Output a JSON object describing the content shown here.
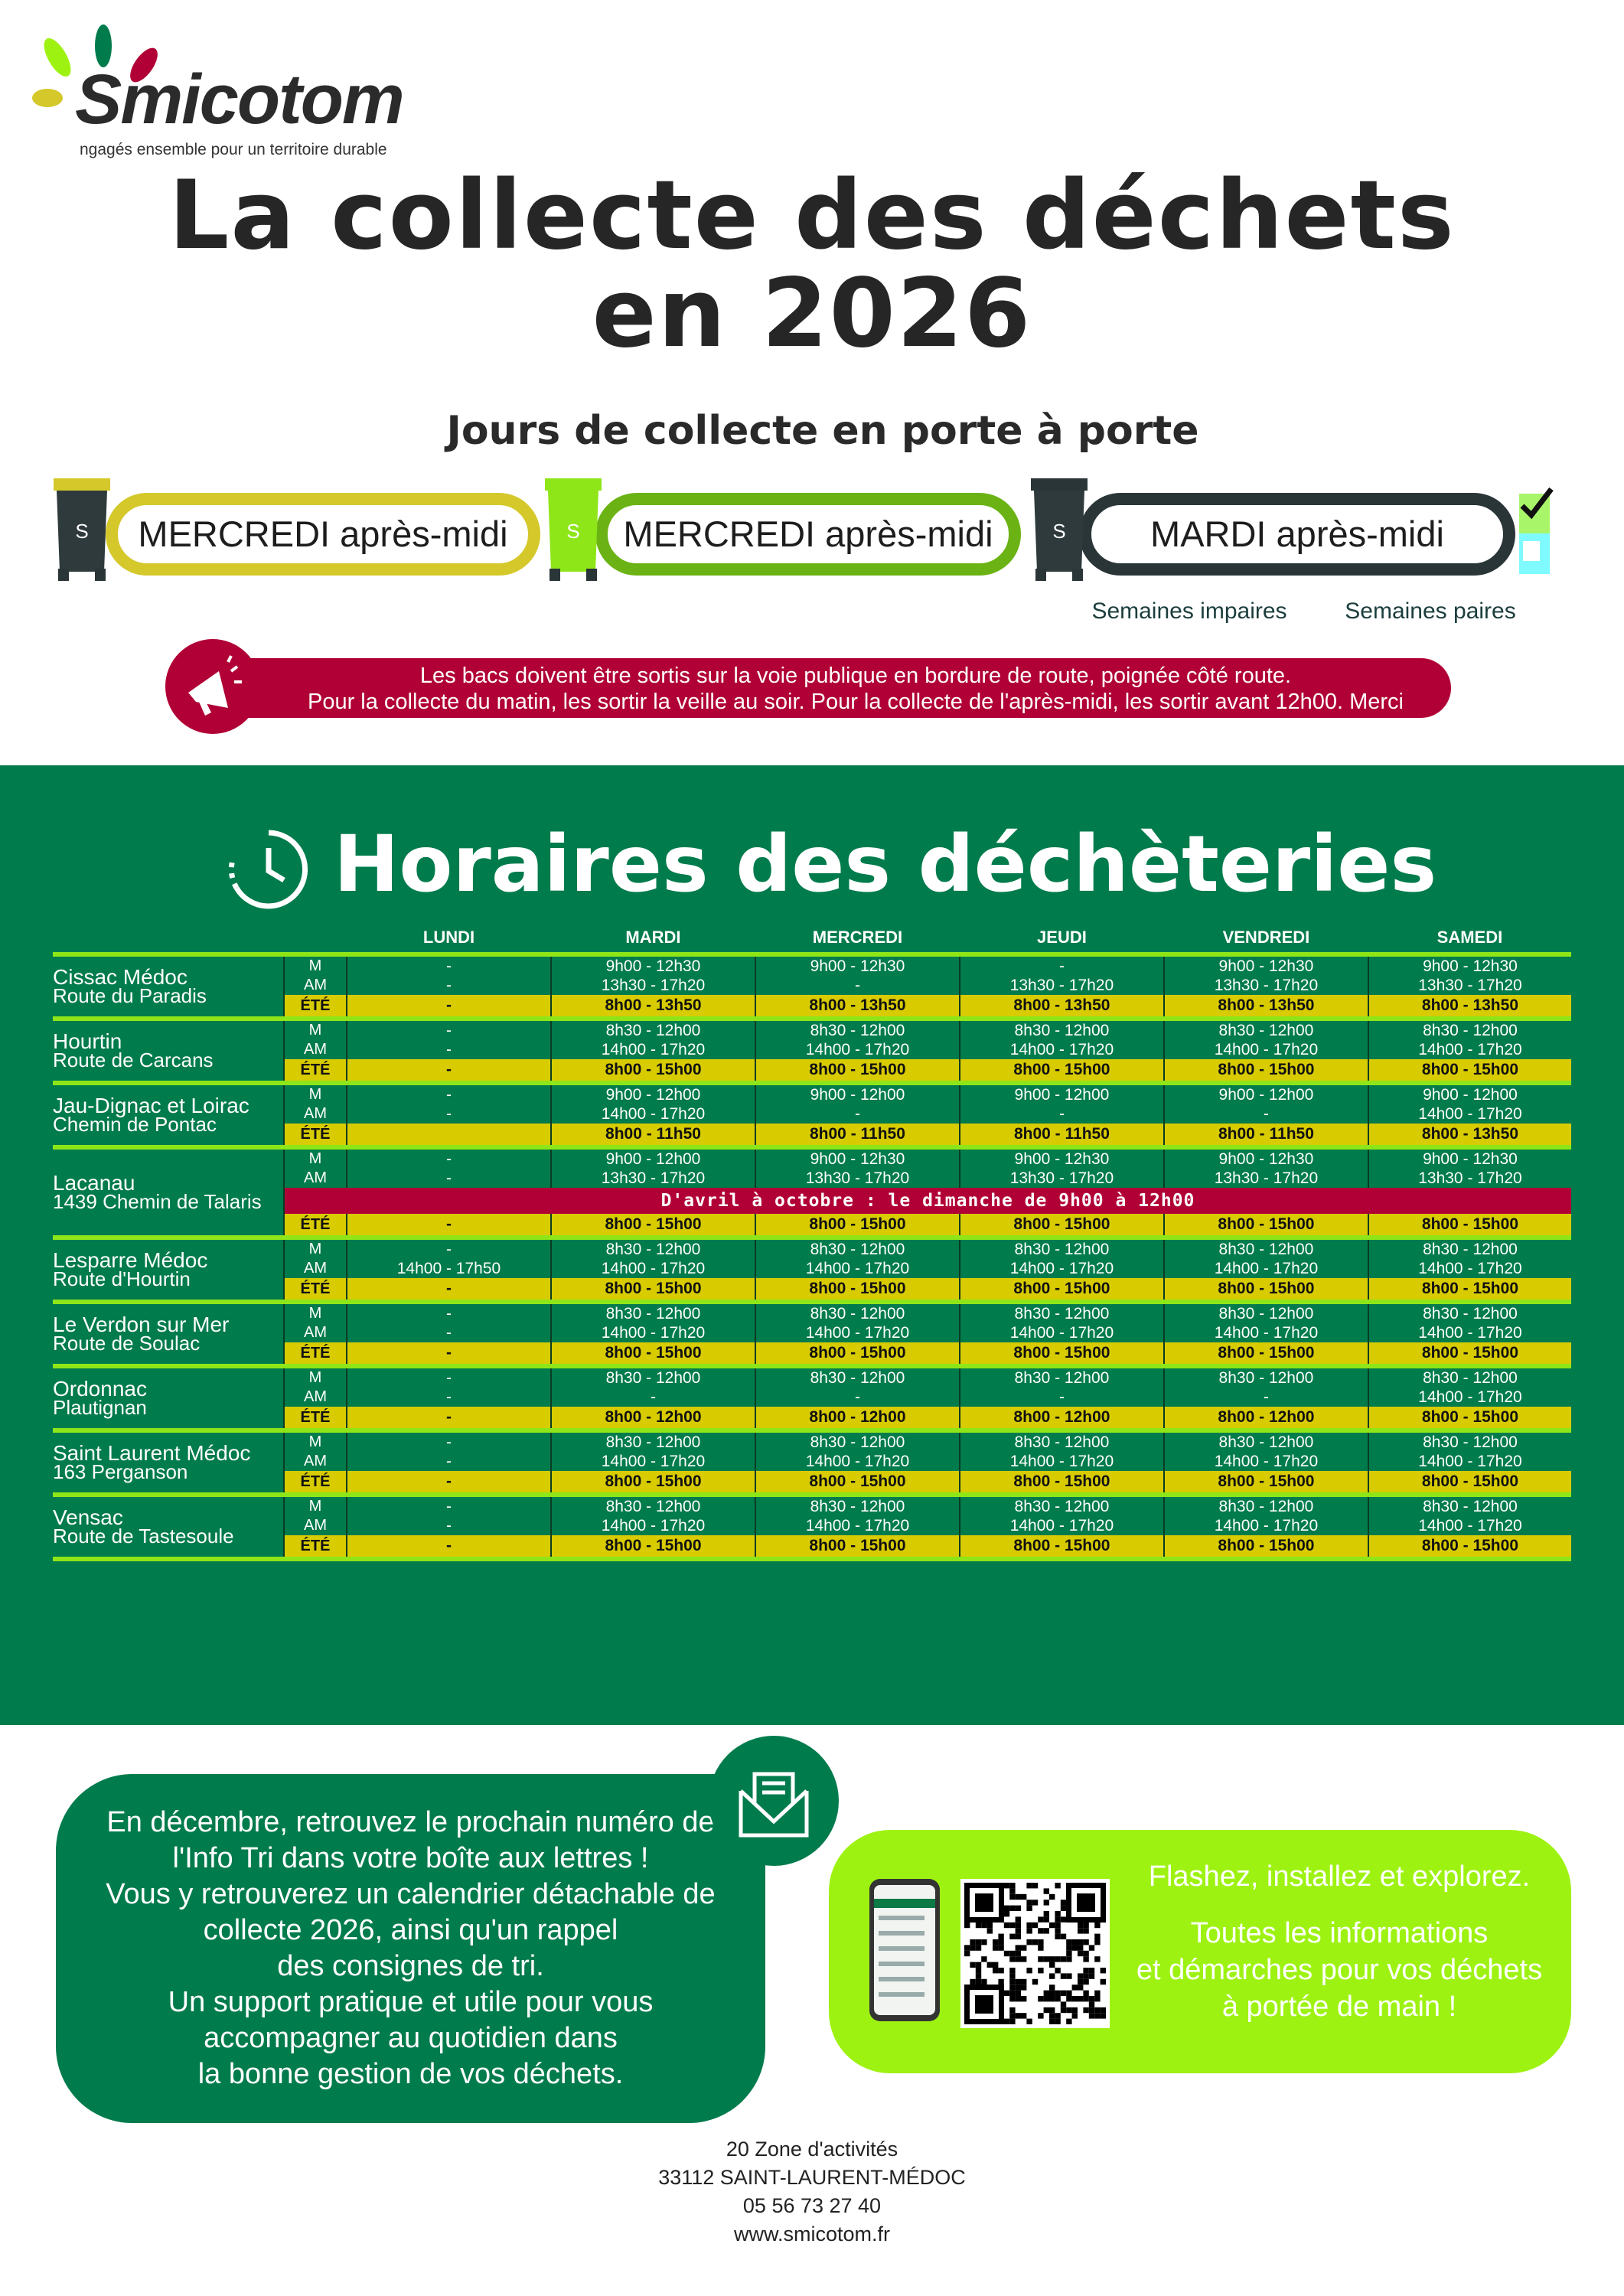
{
  "logo": {
    "word": "Smicotom",
    "tagline": "ngagés ensemble pour un territoire durable"
  },
  "title": {
    "line1": "La collecte des déchets",
    "line2": "en 2026"
  },
  "subtitle": "Jours de collecte en porte à porte",
  "collection": [
    {
      "label": "MERCREDI après-midi",
      "color": "#d4c82a",
      "bin_lid": "#d4c82a",
      "bin_body": "#2e3a3c"
    },
    {
      "label": "MERCREDI après-midi",
      "color": "#6bb314",
      "bin_lid": "#8ee619",
      "bin_body": "#8ee619"
    },
    {
      "label": "MARDI après-midi",
      "color": "#2a3538",
      "bin_lid": "#2a3538",
      "bin_body": "#2e3a3c"
    }
  ],
  "weeks": {
    "odd": "Semaines impaires",
    "even": "Semaines paires",
    "odd_color": "#7ffaff",
    "even_color": "#a8f56a"
  },
  "banner": {
    "line1": "Les bacs doivent être sortis sur la voie publique en bordure de route, poignée côté route.",
    "line2": "Pour la collecte du matin, les sortir la veille au soir. Pour la collecte de l'après-midi, les sortir avant 12h00. Merci"
  },
  "horaires": {
    "title": "Horaires des déchèteries",
    "days": [
      "LUNDI",
      "MARDI",
      "MERCREDI",
      "JEUDI",
      "VENDREDI",
      "SAMEDI"
    ],
    "labels": {
      "m": "M",
      "am": "AM",
      "ete": "ÉTÉ"
    },
    "sites": [
      {
        "name": "Cissac Médoc",
        "address": "Route du Paradis",
        "m": [
          "-",
          "9h00 - 12h30",
          "9h00 - 12h30",
          "-",
          "9h00 - 12h30",
          "9h00 - 12h30"
        ],
        "am": [
          "-",
          "13h30 - 17h20",
          "-",
          "13h30 - 17h20",
          "13h30 - 17h20",
          "13h30 - 17h20"
        ],
        "ete": [
          "-",
          "8h00 - 13h50",
          "8h00 - 13h50",
          "8h00 - 13h50",
          "8h00 - 13h50",
          "8h00 - 13h50"
        ]
      },
      {
        "name": "Hourtin",
        "address": "Route de Carcans",
        "m": [
          "-",
          "8h30 - 12h00",
          "8h30 - 12h00",
          "8h30 - 12h00",
          "8h30 - 12h00",
          "8h30 - 12h00"
        ],
        "am": [
          "-",
          "14h00 - 17h20",
          "14h00 - 17h20",
          "14h00 - 17h20",
          "14h00 - 17h20",
          "14h00 - 17h20"
        ],
        "ete": [
          "-",
          "8h00 - 15h00",
          "8h00 - 15h00",
          "8h00 - 15h00",
          "8h00 - 15h00",
          "8h00 - 15h00"
        ]
      },
      {
        "name": "Jau-Dignac et Loirac",
        "address": "Chemin de Pontac",
        "m": [
          "-",
          "9h00 - 12h00",
          "9h00 - 12h00",
          "9h00 - 12h00",
          "9h00 - 12h00",
          "9h00 - 12h00"
        ],
        "am": [
          "-",
          "14h00 - 17h20",
          "-",
          "-",
          "-",
          "14h00 - 17h20"
        ],
        "ete": [
          "",
          "8h00 - 11h50",
          "8h00 - 11h50",
          "8h00 - 11h50",
          "8h00 - 11h50",
          "8h00 - 13h50"
        ]
      },
      {
        "name": "Lacanau",
        "address": "1439 Chemin de Talaris",
        "m": [
          "-",
          "9h00 - 12h00",
          "9h00 - 12h30",
          "9h00 - 12h30",
          "9h00 - 12h30",
          "9h00 - 12h30"
        ],
        "am": [
          "-",
          "13h30 - 17h20",
          "13h30 - 17h20",
          "13h30 - 17h20",
          "13h30 - 17h20",
          "13h30 - 17h20"
        ],
        "note": "D'avril à octobre : le dimanche de 9h00 à 12h00",
        "ete": [
          "-",
          "8h00 - 15h00",
          "8h00 - 15h00",
          "8h00 - 15h00",
          "8h00 - 15h00",
          "8h00 - 15h00"
        ]
      },
      {
        "name": "Lesparre Médoc",
        "address": "Route d'Hourtin",
        "m": [
          "-",
          "8h30 - 12h00",
          "8h30 - 12h00",
          "8h30 - 12h00",
          "8h30 - 12h00",
          "8h30 - 12h00"
        ],
        "am": [
          "14h00 - 17h50",
          "14h00 - 17h20",
          "14h00 - 17h20",
          "14h00 - 17h20",
          "14h00 - 17h20",
          "14h00 - 17h20"
        ],
        "ete": [
          "-",
          "8h00 - 15h00",
          "8h00 - 15h00",
          "8h00 - 15h00",
          "8h00 - 15h00",
          "8h00 - 15h00"
        ]
      },
      {
        "name": "Le Verdon sur Mer",
        "address": "Route de Soulac",
        "m": [
          "-",
          "8h30 - 12h00",
          "8h30 - 12h00",
          "8h30 - 12h00",
          "8h30 - 12h00",
          "8h30 - 12h00"
        ],
        "am": [
          "-",
          "14h00 - 17h20",
          "14h00 - 17h20",
          "14h00 - 17h20",
          "14h00 - 17h20",
          "14h00 - 17h20"
        ],
        "ete": [
          "-",
          "8h00 - 15h00",
          "8h00 - 15h00",
          "8h00 - 15h00",
          "8h00 - 15h00",
          "8h00 - 15h00"
        ]
      },
      {
        "name": "Ordonnac",
        "address": "Plautignan",
        "m": [
          "-",
          "8h30 - 12h00",
          "8h30 - 12h00",
          "8h30 - 12h00",
          "8h30 - 12h00",
          "8h30 - 12h00"
        ],
        "am": [
          "-",
          "-",
          "-",
          "-",
          "-",
          "14h00 - 17h20"
        ],
        "ete": [
          "-",
          "8h00 - 12h00",
          "8h00 - 12h00",
          "8h00 - 12h00",
          "8h00 - 12h00",
          "8h00 - 15h00"
        ]
      },
      {
        "name": "Saint Laurent Médoc",
        "address": "163 Perganson",
        "m": [
          "-",
          "8h30 - 12h00",
          "8h30 - 12h00",
          "8h30 - 12h00",
          "8h30 - 12h00",
          "8h30 - 12h00"
        ],
        "am": [
          "-",
          "14h00 - 17h20",
          "14h00 - 17h20",
          "14h00 - 17h20",
          "14h00 - 17h20",
          "14h00 - 17h20"
        ],
        "ete": [
          "-",
          "8h00 - 15h00",
          "8h00 - 15h00",
          "8h00 - 15h00",
          "8h00 - 15h00",
          "8h00 - 15h00"
        ]
      },
      {
        "name": "Vensac",
        "address": "Route de Tastesoule",
        "m": [
          "-",
          "8h30 - 12h00",
          "8h30 - 12h00",
          "8h30 - 12h00",
          "8h30 - 12h00",
          "8h30 - 12h00"
        ],
        "am": [
          "-",
          "14h00 - 17h20",
          "14h00 - 17h20",
          "14h00 - 17h20",
          "14h00 - 17h20",
          "14h00 - 17h20"
        ],
        "ete": [
          "-",
          "8h00 - 15h00",
          "8h00 - 15h00",
          "8h00 - 15h00",
          "8h00 - 15h00",
          "8h00 - 15h00"
        ]
      }
    ]
  },
  "info": {
    "lines": [
      "En décembre, retrouvez le prochain numéro de",
      "l'Info Tri dans votre boîte aux lettres !",
      "Vous y retrouverez un calendrier détachable de",
      "collecte 2026, ainsi qu'un rappel",
      "des consignes de tri.",
      "Un support pratique et utile pour vous",
      "accompagner au quotidien dans",
      "la bonne gestion de vos déchets."
    ]
  },
  "app": {
    "line1": "Flashez, installez et explorez.",
    "line2": "Toutes les informations",
    "line3": "et démarches pour vos déchets",
    "line4": "à portée de main !"
  },
  "footer": {
    "address": "20  Zone d'activités",
    "city": "33112 SAINT-LAURENT-MÉDOC",
    "phone": "05 56 73 27 40",
    "website": "www.smicotom.fr"
  },
  "colors": {
    "green": "#007b4c",
    "lime": "#8ee619",
    "yellow": "#d8cb00",
    "red": "#b10035"
  }
}
